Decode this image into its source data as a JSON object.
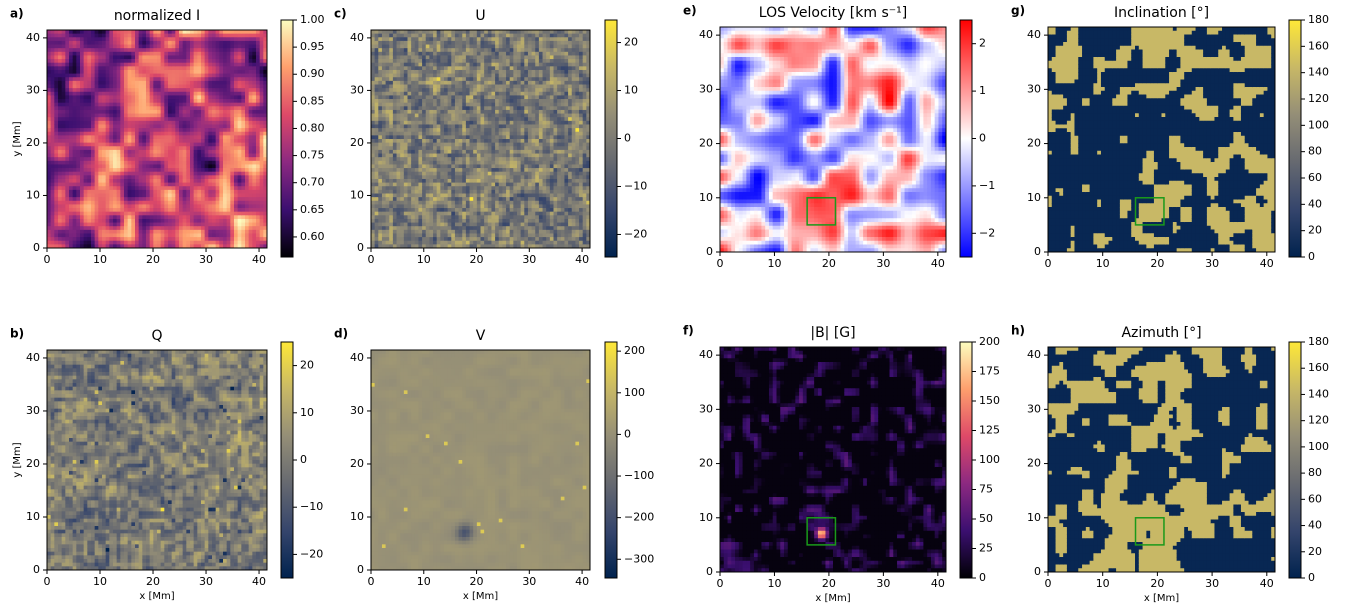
{
  "chart_data": [
    {
      "type": "heatmap",
      "panel": "a)",
      "title": "normalized I",
      "ylabel": "y [Mm]",
      "xlim": [
        0,
        41.5
      ],
      "ylim": [
        0,
        41.5
      ],
      "xticks": [
        0,
        10,
        20,
        30,
        40
      ],
      "yticks": [
        0,
        10,
        20,
        30,
        40
      ],
      "colorbar": {
        "lim": [
          0.563,
          1.0
        ],
        "colormap": [
          "#000004",
          "#3b0f70",
          "#8c2981",
          "#de4968",
          "#fe9f6d",
          "#fcfdbf"
        ],
        "ticks": [
          {
            "value": 0.6,
            "label": "0.60"
          },
          {
            "value": 0.65,
            "label": "0.65"
          },
          {
            "value": 0.7,
            "label": "0.70"
          },
          {
            "value": 0.75,
            "label": "0.75"
          },
          {
            "value": 0.8,
            "label": "0.80"
          },
          {
            "value": 0.85,
            "label": "0.85"
          },
          {
            "value": 0.9,
            "label": "0.90"
          },
          {
            "value": 0.95,
            "label": "0.95"
          },
          {
            "value": 1.0,
            "label": "1.00"
          }
        ]
      }
    },
    {
      "type": "heatmap",
      "panel": "b)",
      "title": "Q",
      "xlabel": "x [Mm]",
      "ylabel": "y [Mm]",
      "xlim": [
        0,
        41.5
      ],
      "ylim": [
        0,
        41.5
      ],
      "xticks": [
        0,
        10,
        20,
        30,
        40
      ],
      "yticks": [
        0,
        10,
        20,
        30,
        40
      ],
      "colorbar": {
        "lim": [
          -25,
          25
        ],
        "colormap": [
          "#00224e",
          "#35456c",
          "#666970",
          "#948e77",
          "#c8b866",
          "#fee838"
        ],
        "ticks": [
          {
            "value": -20,
            "label": "−20"
          },
          {
            "value": -10,
            "label": "−10"
          },
          0,
          10,
          20
        ]
      }
    },
    {
      "type": "heatmap",
      "panel": "c)",
      "title": "U",
      "xlim": [
        0,
        41.5
      ],
      "ylim": [
        0,
        41.5
      ],
      "xticks": [
        0,
        10,
        20,
        30,
        40
      ],
      "yticks": [
        0,
        10,
        20,
        30,
        40
      ],
      "colorbar": {
        "lim": [
          -24.7,
          24.7
        ],
        "colormap": [
          "#00224e",
          "#35456c",
          "#666970",
          "#948e77",
          "#c8b866",
          "#fee838"
        ],
        "ticks": [
          {
            "value": -20,
            "label": "−20"
          },
          {
            "value": -10,
            "label": "−10"
          },
          0,
          10,
          20
        ]
      }
    },
    {
      "type": "heatmap",
      "panel": "d)",
      "title": "V",
      "xlabel": "x [Mm]",
      "xlim": [
        0,
        41.5
      ],
      "ylim": [
        0,
        41.5
      ],
      "xticks": [
        0,
        10,
        20,
        30,
        40
      ],
      "yticks": [
        0,
        10,
        20,
        30,
        40
      ],
      "colorbar": {
        "lim": [
          -345,
          222
        ],
        "colormap": [
          "#00224e",
          "#35456c",
          "#666970",
          "#948e77",
          "#c8b866",
          "#fee838"
        ],
        "ticks": [
          {
            "value": -300,
            "label": "−300"
          },
          {
            "value": -200,
            "label": "−200"
          },
          {
            "value": -100,
            "label": "−100"
          },
          0,
          100,
          200
        ]
      }
    },
    {
      "type": "heatmap",
      "panel": "e)",
      "title": "LOS Velocity [km s⁻¹]",
      "xlim": [
        0,
        41.5
      ],
      "ylim": [
        0,
        41.5
      ],
      "xticks": [
        0,
        10,
        20,
        30,
        40
      ],
      "yticks": [
        0,
        10,
        20,
        30,
        40
      ],
      "highlight_box": {
        "x": [
          16,
          21.2
        ],
        "y": [
          5,
          10
        ],
        "color": "#1a9a1a"
      },
      "colorbar": {
        "lim": [
          -2.5,
          2.5
        ],
        "colormap": [
          "#0000ff",
          "#ffffff",
          "#ff0000"
        ],
        "ticks": [
          {
            "value": -2,
            "label": "−2"
          },
          {
            "value": -1,
            "label": "−1"
          },
          0,
          1,
          2
        ]
      }
    },
    {
      "type": "heatmap",
      "panel": "f)",
      "title": "|B| [G]",
      "xlabel": "x [Mm]",
      "xlim": [
        0,
        41.5
      ],
      "ylim": [
        0,
        41.5
      ],
      "xticks": [
        0,
        10,
        20,
        30,
        40
      ],
      "yticks": [
        0,
        10,
        20,
        30,
        40
      ],
      "highlight_box": {
        "x": [
          16,
          21.2
        ],
        "y": [
          5,
          10
        ],
        "color": "#1a9a1a"
      },
      "colorbar": {
        "lim": [
          0,
          200
        ],
        "colormap": [
          "#000004",
          "#3b0f70",
          "#8c2981",
          "#de4968",
          "#fe9f6d",
          "#fcfdbf"
        ],
        "ticks": [
          0,
          25,
          50,
          75,
          100,
          125,
          150,
          175,
          200
        ]
      }
    },
    {
      "type": "heatmap",
      "panel": "g)",
      "title": "Inclination [°]",
      "xlim": [
        0,
        41.5
      ],
      "ylim": [
        0,
        41.5
      ],
      "xticks": [
        0,
        10,
        20,
        30,
        40
      ],
      "yticks": [
        0,
        10,
        20,
        30,
        40
      ],
      "highlight_box": {
        "x": [
          16,
          21.2
        ],
        "y": [
          5,
          10
        ],
        "color": "#1a9a1a"
      },
      "colorbar": {
        "lim": [
          0,
          180
        ],
        "colormap": [
          "#00224e",
          "#35456c",
          "#666970",
          "#948e77",
          "#c8b866",
          "#fee838"
        ],
        "ticks": [
          0,
          20,
          40,
          60,
          80,
          100,
          120,
          140,
          160,
          180
        ]
      }
    },
    {
      "type": "heatmap",
      "panel": "h)",
      "title": "Azimuth [°]",
      "xlabel": "x [Mm]",
      "xlim": [
        0,
        41.5
      ],
      "ylim": [
        0,
        41.5
      ],
      "xticks": [
        0,
        10,
        20,
        30,
        40
      ],
      "yticks": [
        0,
        10,
        20,
        30,
        40
      ],
      "highlight_box": {
        "x": [
          16,
          21.2
        ],
        "y": [
          5,
          10
        ],
        "color": "#1a9a1a"
      },
      "colorbar": {
        "lim": [
          0,
          180
        ],
        "colormap": [
          "#00224e",
          "#35456c",
          "#666970",
          "#948e77",
          "#c8b866",
          "#fee838"
        ],
        "ticks": [
          0,
          20,
          40,
          60,
          80,
          100,
          120,
          140,
          160,
          180
        ]
      }
    }
  ]
}
